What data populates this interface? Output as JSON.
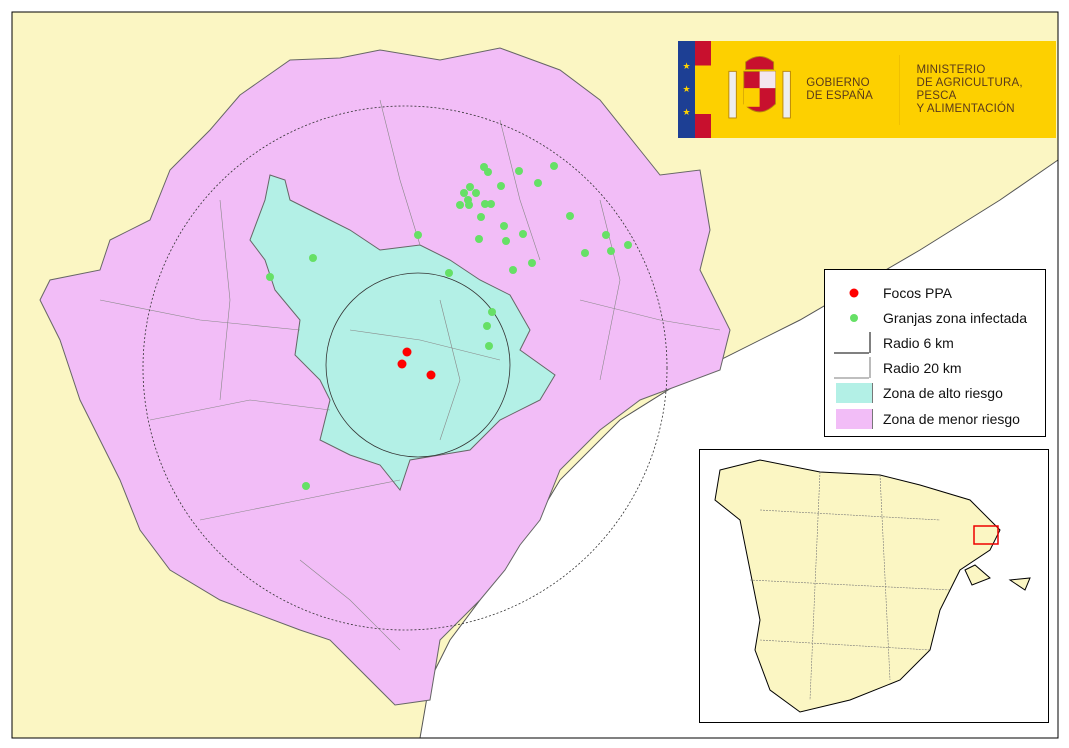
{
  "logo": {
    "government": [
      "GOBIERNO",
      "DE ESPAÑA"
    ],
    "ministry": [
      "MINISTERIO",
      "DE AGRICULTURA, PESCA",
      "Y ALIMENTACIÓN"
    ]
  },
  "legend": {
    "items": [
      {
        "label": "Focos PPA",
        "symbol": "red-dot",
        "color": "#ff0000"
      },
      {
        "label": "Granjas zona infectada",
        "symbol": "green-dot",
        "color": "#66e066"
      },
      {
        "label": "Radio 6 km",
        "symbol": "line"
      },
      {
        "label": "Radio 20 km",
        "symbol": "line"
      },
      {
        "label": "Zona de alto riesgo",
        "symbol": "swatch",
        "color": "#b3f0e6"
      },
      {
        "label": "Zona de menor riesgo",
        "symbol": "swatch",
        "color": "#f2bdf7"
      }
    ]
  },
  "colors": {
    "land": "#fbf6c3",
    "sea": "#ffffff",
    "high_risk": "#b3f0e6",
    "low_risk": "#f2bdf7",
    "outbreak": "#ff0000",
    "farm": "#66e066"
  }
}
